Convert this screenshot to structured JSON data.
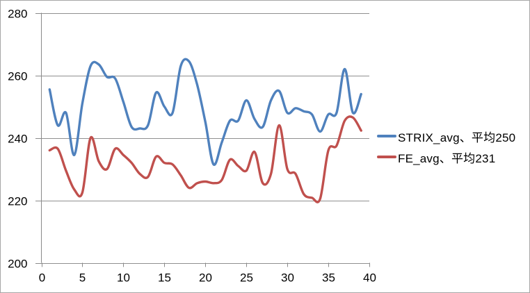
{
  "figure": {
    "background": "#FFFFFF",
    "border_color": "#A6A6A6"
  },
  "chart_data": {
    "type": "line",
    "title": "",
    "xlabel": "",
    "ylabel": "",
    "smooth": true,
    "grid": "horizontal",
    "legend_position": "right",
    "xlim": [
      0,
      40
    ],
    "ylim": [
      200,
      280
    ],
    "x_ticks": [
      0,
      5,
      10,
      15,
      20,
      25,
      30,
      35,
      40
    ],
    "y_ticks": [
      280,
      260,
      240,
      220,
      200
    ],
    "gridline_color": "#8F8F8F",
    "axis_color": "#8A8A8A",
    "tick_label_color": "#000000",
    "x": [
      1,
      2,
      3,
      4,
      5,
      6,
      7,
      8,
      9,
      10,
      11,
      12,
      13,
      14,
      15,
      16,
      17,
      18,
      19,
      20,
      21,
      22,
      23,
      24,
      25,
      26,
      27,
      28,
      29,
      30,
      31,
      32,
      33,
      34,
      35,
      36,
      37,
      38,
      39
    ],
    "series": [
      {
        "name": "STRIX_avg",
        "legend_label": "STRIX_avg、平均250",
        "average": 250,
        "color": "#4F81BD",
        "values": [
          255.5,
          244,
          248,
          234.5,
          251,
          263,
          263.5,
          259.5,
          259,
          251.5,
          243.5,
          243,
          244,
          254.5,
          250,
          248,
          263,
          264.5,
          257,
          245,
          231.5,
          238.5,
          245.5,
          245.5,
          252,
          246,
          243.5,
          252,
          255,
          248,
          249.5,
          248.5,
          247.5,
          242,
          247.5,
          248,
          262,
          248,
          254
        ]
      },
      {
        "name": "FE_avg",
        "legend_label": "FE_avg、平均231",
        "average": 231,
        "color": "#C0504D",
        "values": [
          236,
          236.5,
          229.5,
          223.5,
          222.5,
          240,
          232.5,
          230,
          236.5,
          234.5,
          232,
          228.5,
          227.5,
          234,
          232,
          231.5,
          228,
          224,
          225.5,
          226,
          225.5,
          226.5,
          233,
          231,
          229.5,
          235.5,
          225.5,
          228.5,
          244,
          230,
          228.5,
          222,
          220.8,
          220.5,
          236,
          237.5,
          245.5,
          246.5,
          242.3
        ]
      }
    ]
  }
}
